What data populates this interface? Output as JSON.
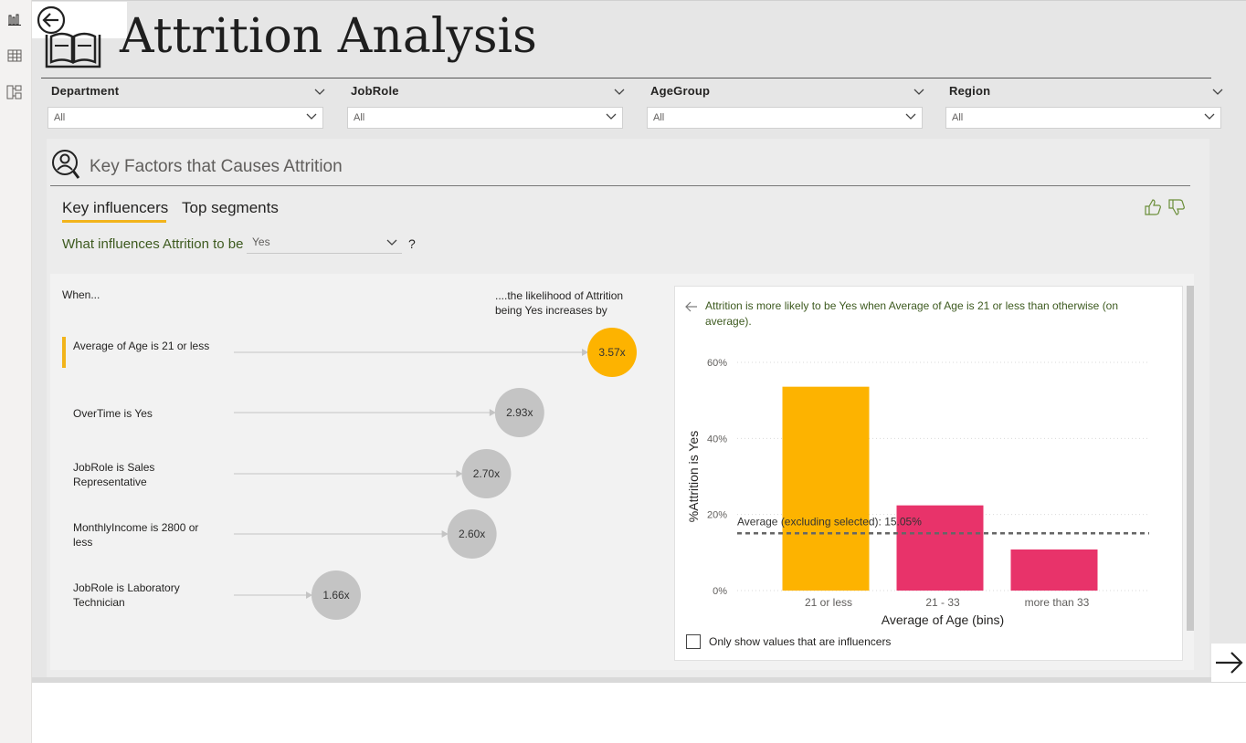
{
  "rail": {
    "items": [
      "report-view",
      "data-view",
      "model-view"
    ]
  },
  "header": {
    "title": "Attrition Analysis"
  },
  "slicers": [
    {
      "label": "Department",
      "value": "All"
    },
    {
      "label": "JobRole",
      "value": "All"
    },
    {
      "label": "AgeGroup",
      "value": "All"
    },
    {
      "label": "Region",
      "value": "All"
    }
  ],
  "panel": {
    "title": "Key Factors that Causes Attrition",
    "tabs": [
      "Key influencers",
      "Top segments"
    ],
    "question_prefix": "What influences Attrition to be",
    "question_value": "Yes",
    "question_suffix": "?",
    "when_label": "When...",
    "likelihood_label": "....the likelihood of Attrition being Yes increases by"
  },
  "influencers": [
    {
      "label": "Average of Age is 21 or less",
      "value": "3.57x",
      "factor": 3.57,
      "selected": true
    },
    {
      "label": "OverTime is Yes",
      "value": "2.93x",
      "factor": 2.93,
      "selected": false
    },
    {
      "label": "JobRole is Sales Representative",
      "value": "2.70x",
      "factor": 2.7,
      "selected": false
    },
    {
      "label": "MonthlyIncome is 2800 or less",
      "value": "2.60x",
      "factor": 2.6,
      "selected": false
    },
    {
      "label": "JobRole is Laboratory Technician",
      "value": "1.66x",
      "factor": 1.66,
      "selected": false
    }
  ],
  "detail": {
    "description": "Attrition is more likely to be Yes when Average of Age is 21 or less than otherwise (on average).",
    "checkbox_label": "Only show values that are influencers"
  },
  "chart_data": {
    "type": "bar",
    "categories": [
      "21 or less",
      "21 - 33",
      "more than 33"
    ],
    "values": [
      53.6,
      22.4,
      10.8
    ],
    "xlabel": "Average of Age (bins)",
    "ylabel": "%Attrition is Yes",
    "ylim": [
      0,
      60
    ],
    "yticks": [
      "0%",
      "20%",
      "40%",
      "60%"
    ],
    "average_line": {
      "value": 15.05,
      "label": "Average (excluding selected): 15.05%"
    },
    "colors": {
      "selected": "#FDB300",
      "other": "#E8336A"
    },
    "grid": true
  },
  "colors": {
    "accent": "#F2B41B",
    "influencer_circle": "#FDB300",
    "neutral_circle": "#C4C4C4"
  }
}
